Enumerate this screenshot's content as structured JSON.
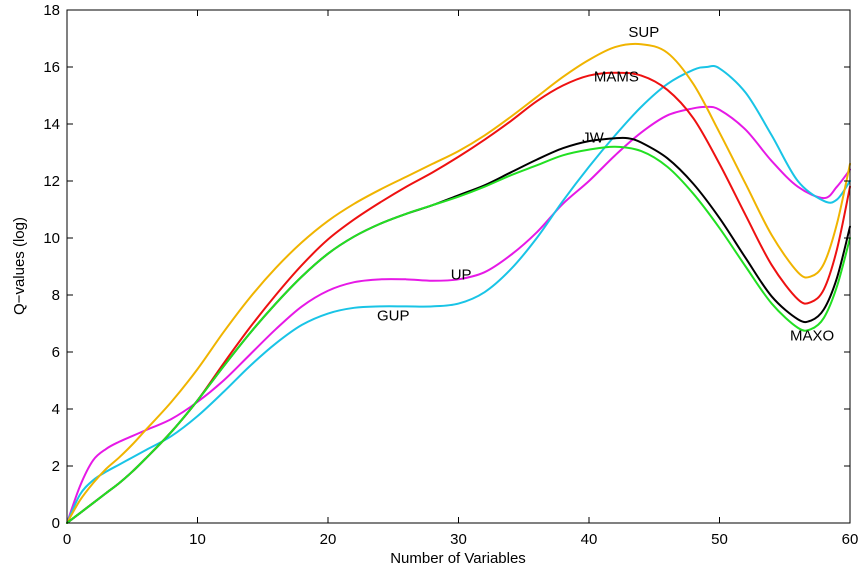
{
  "chart_data": {
    "type": "line",
    "xlabel": "Number of Variables",
    "ylabel": "Q−values (log)",
    "xlim": [
      0,
      60
    ],
    "ylim": [
      0,
      18
    ],
    "xticks": [
      0,
      10,
      20,
      30,
      40,
      50,
      60
    ],
    "yticks": [
      0,
      2,
      4,
      6,
      8,
      10,
      12,
      14,
      16,
      18
    ],
    "grid": false,
    "legend": "none",
    "series": [
      {
        "name": "UP",
        "color": "#e619e6",
        "x": [
          0,
          1,
          2,
          3,
          4,
          5,
          6,
          8,
          10,
          12,
          14,
          16,
          18,
          20,
          22,
          24,
          26,
          28,
          30,
          32,
          34,
          36,
          38,
          40,
          42,
          44,
          46,
          48,
          49,
          50,
          52,
          54,
          56,
          58,
          59,
          60
        ],
        "y": [
          0,
          1.3,
          2.2,
          2.6,
          2.85,
          3.05,
          3.25,
          3.65,
          4.25,
          5.0,
          5.9,
          6.8,
          7.6,
          8.15,
          8.45,
          8.55,
          8.55,
          8.5,
          8.55,
          8.8,
          9.4,
          10.2,
          11.2,
          12.0,
          12.9,
          13.7,
          14.3,
          14.55,
          14.6,
          14.5,
          13.8,
          12.7,
          11.8,
          11.4,
          11.8,
          12.4
        ]
      },
      {
        "name": "GUP",
        "color": "#19c4e6",
        "x": [
          0,
          1,
          2,
          3,
          4,
          5,
          6,
          8,
          10,
          12,
          14,
          16,
          18,
          20,
          22,
          24,
          26,
          28,
          30,
          32,
          34,
          36,
          38,
          40,
          42,
          44,
          46,
          48,
          49,
          50,
          52,
          54,
          56,
          58,
          59,
          60
        ],
        "y": [
          0,
          1.0,
          1.5,
          1.8,
          2.05,
          2.3,
          2.55,
          3.05,
          3.75,
          4.6,
          5.5,
          6.3,
          6.95,
          7.35,
          7.55,
          7.6,
          7.6,
          7.6,
          7.7,
          8.1,
          8.9,
          10.0,
          11.3,
          12.5,
          13.6,
          14.6,
          15.4,
          15.9,
          16.0,
          15.95,
          15.1,
          13.6,
          12.0,
          11.3,
          11.35,
          12.0
        ]
      },
      {
        "name": "SUP",
        "color": "#f0b400",
        "x": [
          0,
          1,
          2,
          3,
          4,
          5,
          6,
          8,
          10,
          12,
          14,
          16,
          18,
          20,
          22,
          24,
          26,
          28,
          30,
          32,
          34,
          36,
          38,
          40,
          42,
          44,
          46,
          48,
          50,
          52,
          54,
          56,
          57,
          58,
          59,
          60
        ],
        "y": [
          0,
          0.8,
          1.4,
          1.9,
          2.3,
          2.75,
          3.25,
          4.25,
          5.4,
          6.7,
          7.9,
          8.95,
          9.85,
          10.6,
          11.2,
          11.7,
          12.15,
          12.6,
          13.05,
          13.6,
          14.25,
          14.95,
          15.65,
          16.25,
          16.7,
          16.8,
          16.5,
          15.4,
          13.7,
          11.9,
          10.1,
          8.8,
          8.65,
          9.1,
          10.5,
          12.6
        ]
      },
      {
        "name": "MAMS",
        "color": "#ee1111",
        "x": [
          0,
          1,
          2,
          3,
          4,
          5,
          6,
          8,
          10,
          12,
          14,
          16,
          18,
          20,
          22,
          24,
          26,
          28,
          30,
          32,
          34,
          36,
          38,
          40,
          42,
          44,
          46,
          48,
          50,
          52,
          54,
          56,
          57,
          58,
          59,
          60
        ],
        "y": [
          0,
          0.35,
          0.7,
          1.05,
          1.4,
          1.8,
          2.25,
          3.2,
          4.3,
          5.6,
          6.85,
          8.0,
          9.05,
          9.95,
          10.65,
          11.25,
          11.8,
          12.3,
          12.85,
          13.45,
          14.1,
          14.8,
          15.35,
          15.7,
          15.8,
          15.7,
          15.2,
          14.2,
          12.6,
          10.8,
          9.05,
          7.85,
          7.75,
          8.2,
          9.6,
          11.8
        ]
      },
      {
        "name": "JW",
        "color": "#000000",
        "x": [
          0,
          1,
          2,
          3,
          4,
          5,
          6,
          8,
          10,
          12,
          14,
          16,
          18,
          20,
          22,
          24,
          26,
          28,
          30,
          32,
          34,
          36,
          38,
          40,
          42,
          43,
          44,
          46,
          48,
          50,
          52,
          54,
          56,
          57,
          58,
          59,
          60
        ],
        "y": [
          0,
          0.35,
          0.7,
          1.05,
          1.4,
          1.8,
          2.25,
          3.2,
          4.3,
          5.5,
          6.65,
          7.7,
          8.65,
          9.45,
          10.05,
          10.5,
          10.85,
          11.15,
          11.5,
          11.85,
          12.3,
          12.75,
          13.15,
          13.4,
          13.5,
          13.5,
          13.35,
          12.8,
          11.9,
          10.7,
          9.3,
          7.95,
          7.15,
          7.1,
          7.5,
          8.6,
          10.4
        ]
      },
      {
        "name": "MAXO",
        "color": "#22e022",
        "x": [
          0,
          1,
          2,
          3,
          4,
          5,
          6,
          8,
          10,
          12,
          14,
          16,
          18,
          20,
          22,
          24,
          26,
          28,
          30,
          32,
          34,
          36,
          38,
          40,
          42,
          44,
          46,
          48,
          50,
          52,
          54,
          56,
          57,
          58,
          59,
          60
        ],
        "y": [
          0,
          0.35,
          0.7,
          1.05,
          1.4,
          1.8,
          2.25,
          3.2,
          4.3,
          5.5,
          6.65,
          7.7,
          8.65,
          9.45,
          10.05,
          10.5,
          10.85,
          11.15,
          11.45,
          11.8,
          12.2,
          12.55,
          12.9,
          13.1,
          13.2,
          13.05,
          12.5,
          11.55,
          10.35,
          9.0,
          7.7,
          6.85,
          6.8,
          7.2,
          8.3,
          10.0
        ]
      }
    ],
    "annotations": [
      {
        "text": "SUP",
        "x": 44.2,
        "y": 17.05
      },
      {
        "text": "MAMS",
        "x": 42.1,
        "y": 15.5
      },
      {
        "text": "JW",
        "x": 40.3,
        "y": 13.35
      },
      {
        "text": "UP",
        "x": 30.2,
        "y": 8.55
      },
      {
        "text": "GUP",
        "x": 25.0,
        "y": 7.1
      },
      {
        "text": "MAXO",
        "x": 57.1,
        "y": 6.4
      }
    ]
  }
}
